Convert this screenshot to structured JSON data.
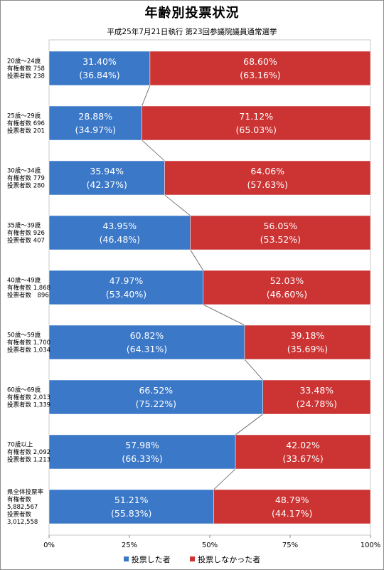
{
  "chart_data": {
    "type": "bar",
    "stacked": true,
    "orientation": "horizontal",
    "title": "年齢別投票状況",
    "subtitle": "平成25年7月21日執行 第23回参議院議員通常選挙",
    "categories": [
      [
        "20歳～24歳",
        "有権者数 758",
        "投票者数 238"
      ],
      [
        "25歳～29歳",
        "有権者数 696",
        "投票者数 201"
      ],
      [
        "30歳～34歳",
        "有権者数 779",
        "投票者数 280"
      ],
      [
        "35歳～39歳",
        "有権者数 926",
        "投票者数 407"
      ],
      [
        "40歳～49歳",
        "有権者数 1,868",
        "投票者数　896"
      ],
      [
        "50歳～59歳",
        "有権者数 1,700",
        "投票者数 1,034"
      ],
      [
        "60歳～69歳",
        "有権者数 2,013",
        "投票者数 1,339"
      ],
      [
        "70歳以上",
        "有権者数 2,092",
        "投票者数 1,213"
      ],
      [
        "県全体投票率",
        "有権者数",
        "5,882,567",
        "投票者数",
        "3,012,558"
      ]
    ],
    "series": [
      {
        "name": "投票した者",
        "color": "#3b78c8",
        "values": [
          31.4,
          28.88,
          35.94,
          43.95,
          47.97,
          60.82,
          66.52,
          57.98,
          51.21
        ],
        "labels": [
          "31.40%",
          "28.88%",
          "35.94%",
          "43.95%",
          "47.97%",
          "60.82%",
          "66.52%",
          "57.98%",
          "51.21%"
        ],
        "sublabels": [
          "(36.84%)",
          "(34.97%)",
          "(42.37%)",
          "(46.48%)",
          "(53.40%)",
          "(64.31%)",
          "(75.22%)",
          "(66.33%)",
          "(55.83%)"
        ]
      },
      {
        "name": "投票しなかった者",
        "color": "#cc3333",
        "values": [
          68.6,
          71.12,
          64.06,
          56.05,
          52.03,
          39.18,
          33.48,
          42.02,
          48.79
        ],
        "labels": [
          "68.60%",
          "71.12%",
          "64.06%",
          "56.05%",
          "52.03%",
          "39.18%",
          "33.48%",
          "42.02%",
          "48.79%"
        ],
        "sublabels": [
          "(63.16%)",
          "(65.03%)",
          "(57.63%)",
          "(53.52%)",
          "(46.60%)",
          "(35.69%)",
          "(24.78%)",
          "(33.67%)",
          "(44.17%)"
        ]
      }
    ],
    "xlim": [
      0,
      100
    ],
    "xticks": [
      "0%",
      "25%",
      "50%",
      "75%",
      "100%"
    ],
    "series_lines": true,
    "legend": "bottom"
  }
}
